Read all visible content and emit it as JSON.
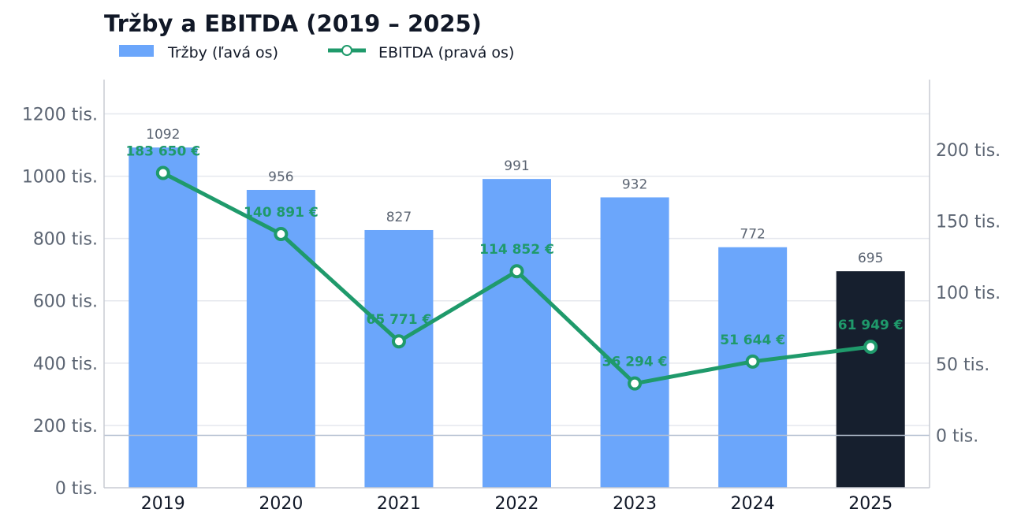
{
  "chart_data": {
    "type": "bar",
    "title": "Tržby a EBITDA (2019 – 2025)",
    "categories": [
      "2019",
      "2020",
      "2021",
      "2022",
      "2023",
      "2024",
      "2025"
    ],
    "series": [
      {
        "name": "Tržby (ľavá os)",
        "type": "bar",
        "axis": "left",
        "values": [
          1092,
          956,
          827,
          991,
          932,
          772,
          695
        ],
        "labels": [
          "1092",
          "956",
          "827",
          "991",
          "932",
          "772",
          "695"
        ],
        "color": "#6ba6fb",
        "highlight_color": "#161f2e",
        "highlight_index": 6
      },
      {
        "name": "EBITDA (pravá os)",
        "type": "line",
        "axis": "right",
        "values": [
          183650,
          140891,
          65771,
          114852,
          36294,
          51644,
          61949
        ],
        "labels": [
          "183 650 €",
          "140 891 €",
          "65 771 €",
          "114 852 €",
          "36 294 €",
          "51 644 €",
          "61 949 €"
        ],
        "color": "#1f9a6b"
      }
    ],
    "left_axis": {
      "ylim": [
        0,
        1310
      ],
      "ticks": [
        0,
        200,
        400,
        600,
        800,
        1000,
        1200
      ],
      "tick_labels": [
        "0 tis.",
        "200 tis.",
        "400 tis.",
        "600 tis.",
        "800 tis.",
        "1000 tis.",
        "1200 tis."
      ]
    },
    "right_axis": {
      "ylim": [
        -36700,
        249000
      ],
      "ticks": [
        0,
        50000,
        100000,
        150000,
        200000
      ],
      "tick_labels": [
        "0 tis.",
        "50 tis.",
        "100 tis.",
        "150 tis.",
        "200 tis."
      ]
    },
    "grid": true,
    "legend": "top-left"
  }
}
